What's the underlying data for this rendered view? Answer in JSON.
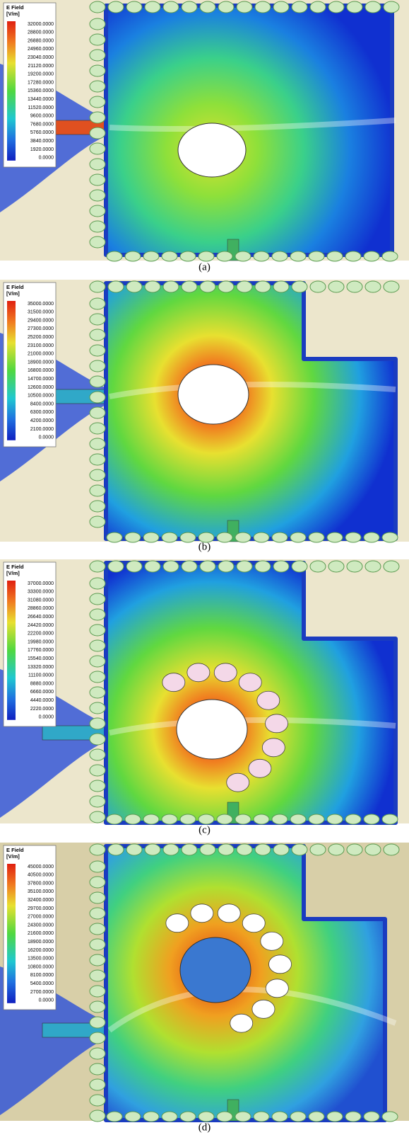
{
  "panels": [
    {
      "caption": "(a)",
      "legend": {
        "title": "E Field",
        "unit": "[V/m]",
        "labels": [
          "32000.0000",
          "28800.0000",
          "26880.0000",
          "24960.0000",
          "23040.0000",
          "21120.0000",
          "19200.0000",
          "17280.0000",
          "15360.0000",
          "13440.0000",
          "11520.0000",
          "9600.0000",
          "7680.0000",
          "5760.0000",
          "3840.0000",
          "1920.0000",
          "0.0000"
        ]
      }
    },
    {
      "caption": "(b)",
      "legend": {
        "title": "E Field",
        "unit": "[V/m]",
        "labels": [
          "35000.0000",
          "31500.0000",
          "29400.0000",
          "27300.0000",
          "25200.0000",
          "23100.0000",
          "21000.0000",
          "18900.0000",
          "16800.0000",
          "14700.0000",
          "12600.0000",
          "10500.0000",
          "8400.0000",
          "6300.0000",
          "4200.0000",
          "2100.0000",
          "0.0000"
        ]
      }
    },
    {
      "caption": "(c)",
      "legend": {
        "title": "E Field",
        "unit": "[V/m]",
        "labels": [
          "37000.0000",
          "33300.0000",
          "31080.0000",
          "28860.0000",
          "26640.0000",
          "24420.0000",
          "22200.0000",
          "19980.0000",
          "17760.0000",
          "15540.0000",
          "13320.0000",
          "11100.0000",
          "8880.0000",
          "6660.0000",
          "4440.0000",
          "2220.0000",
          "0.0000"
        ]
      }
    },
    {
      "caption": "(d)",
      "legend": {
        "title": "E Field",
        "unit": "[V/m]",
        "labels": [
          "45000.0000",
          "40500.0000",
          "37800.0000",
          "35100.0000",
          "32400.0000",
          "29700.0000",
          "27000.0000",
          "24300.0000",
          "21600.0000",
          "18900.0000",
          "16200.0000",
          "13500.0000",
          "10800.0000",
          "8100.0000",
          "5400.0000",
          "2700.0000",
          "0.0000"
        ]
      }
    }
  ]
}
